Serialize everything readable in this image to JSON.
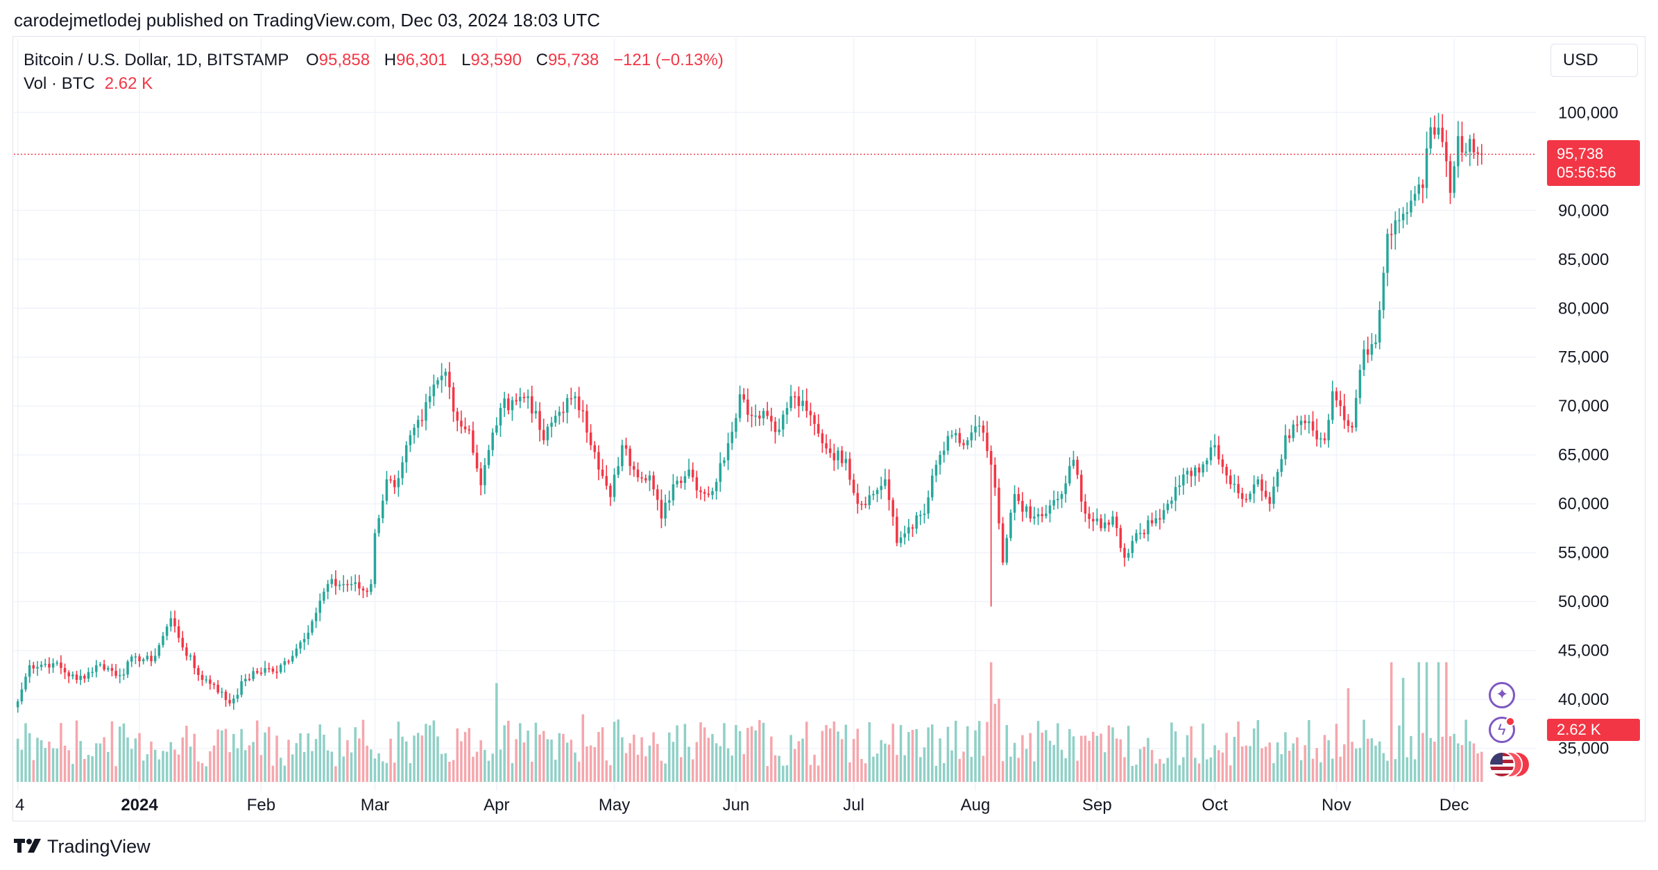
{
  "header": {
    "published_line": "carodejmetlodej published on TradingView.com, Dec 03, 2024 18:03 UTC"
  },
  "legend": {
    "symbol": "Bitcoin / U.S. Dollar, 1D, BITSTAMP",
    "o_label": "O",
    "o_value": "95,858",
    "h_label": "H",
    "h_value": "96,301",
    "l_label": "L",
    "l_value": "93,590",
    "c_label": "C",
    "c_value": "95,738",
    "change": "−121 (−0.13%)",
    "vol_label": "Vol · BTC",
    "vol_value": "2.62 K"
  },
  "toolbar": {
    "currency": "USD"
  },
  "badges": {
    "last_price": "95,738",
    "countdown": "05:56:56",
    "last_volume": "2.62 K"
  },
  "icons": [
    "sparkle-icon",
    "bolt-icon",
    "us-flag-icon"
  ],
  "brand": {
    "name": "TradingView"
  },
  "colors": {
    "up": "#26a69a",
    "down": "#f23645",
    "vol_up": "#8fd0c6",
    "vol_down": "#f5a6ac",
    "grid": "#f0f3fa"
  },
  "chart_data": {
    "type": "candlestick",
    "symbol": "Bitcoin / U.S. Dollar",
    "interval": "1D",
    "exchange": "BITSTAMP",
    "grid": true,
    "y_ticks": [
      "100,000",
      "90,000",
      "85,000",
      "80,000",
      "75,000",
      "70,000",
      "65,000",
      "60,000",
      "55,000",
      "50,000",
      "45,000",
      "40,000",
      "35,000"
    ],
    "y_tick_values": [
      100000,
      90000,
      85000,
      80000,
      75000,
      70000,
      65000,
      60000,
      55000,
      50000,
      45000,
      40000,
      35000
    ],
    "ylim": [
      31500,
      103000
    ],
    "x_ticks": [
      "4",
      "2024",
      "Feb",
      "Mar",
      "Apr",
      "May",
      "Jun",
      "Jul",
      "Aug",
      "Sep",
      "Oct",
      "Nov",
      "Dec"
    ],
    "x_tick_days": [
      -27,
      4,
      35,
      64,
      95,
      125,
      156,
      186,
      217,
      248,
      278,
      309,
      339
    ],
    "xlim": [
      -28,
      360
    ],
    "last_close": 95738,
    "anchors": [
      {
        "day": -27,
        "close": 39800
      },
      {
        "day": -24,
        "close": 43500
      },
      {
        "day": -18,
        "close": 43700
      },
      {
        "day": -12,
        "close": 42000
      },
      {
        "day": -6,
        "close": 43600
      },
      {
        "day": -1,
        "close": 42500
      },
      {
        "day": 3,
        "close": 44400
      },
      {
        "day": 7,
        "close": 43900
      },
      {
        "day": 10,
        "close": 46500
      },
      {
        "day": 12,
        "close": 48300
      },
      {
        "day": 14,
        "close": 46300
      },
      {
        "day": 19,
        "close": 42500
      },
      {
        "day": 23,
        "close": 41500
      },
      {
        "day": 27,
        "close": 39600
      },
      {
        "day": 31,
        "close": 42100
      },
      {
        "day": 36,
        "close": 43200
      },
      {
        "day": 39,
        "close": 42800
      },
      {
        "day": 44,
        "close": 45200
      },
      {
        "day": 48,
        "close": 48000
      },
      {
        "day": 52,
        "close": 51800
      },
      {
        "day": 58,
        "close": 51800
      },
      {
        "day": 62,
        "close": 51000
      },
      {
        "day": 63,
        "close": 51800
      },
      {
        "day": 64,
        "close": 57000
      },
      {
        "day": 67,
        "close": 62500
      },
      {
        "day": 69,
        "close": 61700
      },
      {
        "day": 72,
        "close": 66000
      },
      {
        "day": 76,
        "close": 68500
      },
      {
        "day": 78,
        "close": 71000
      },
      {
        "day": 82,
        "close": 73500
      },
      {
        "day": 85,
        "close": 68500
      },
      {
        "day": 88,
        "close": 67500
      },
      {
        "day": 91,
        "close": 61900
      },
      {
        "day": 93,
        "close": 65500
      },
      {
        "day": 96,
        "close": 69800
      },
      {
        "day": 99,
        "close": 70600
      },
      {
        "day": 103,
        "close": 71000
      },
      {
        "day": 107,
        "close": 66500
      },
      {
        "day": 110,
        "close": 69000
      },
      {
        "day": 114,
        "close": 70800
      },
      {
        "day": 117,
        "close": 69500
      },
      {
        "day": 121,
        "close": 63500
      },
      {
        "day": 124,
        "close": 60700
      },
      {
        "day": 127,
        "close": 66000
      },
      {
        "day": 130,
        "close": 63500
      },
      {
        "day": 134,
        "close": 62900
      },
      {
        "day": 137,
        "close": 58500
      },
      {
        "day": 140,
        "close": 62000
      },
      {
        "day": 144,
        "close": 63500
      },
      {
        "day": 147,
        "close": 61200
      },
      {
        "day": 150,
        "close": 61300
      },
      {
        "day": 154,
        "close": 66200
      },
      {
        "day": 157,
        "close": 71200
      },
      {
        "day": 160,
        "close": 69000
      },
      {
        "day": 163,
        "close": 69500
      },
      {
        "day": 167,
        "close": 67600
      },
      {
        "day": 170,
        "close": 71000
      },
      {
        "day": 174,
        "close": 69500
      },
      {
        "day": 177,
        "close": 67200
      },
      {
        "day": 180,
        "close": 65200
      },
      {
        "day": 184,
        "close": 64600
      },
      {
        "day": 187,
        "close": 60000
      },
      {
        "day": 191,
        "close": 61000
      },
      {
        "day": 194,
        "close": 62500
      },
      {
        "day": 197,
        "close": 56000
      },
      {
        "day": 200,
        "close": 57600
      },
      {
        "day": 204,
        "close": 59000
      },
      {
        "day": 207,
        "close": 64000
      },
      {
        "day": 211,
        "close": 67000
      },
      {
        "day": 214,
        "close": 66000
      },
      {
        "day": 218,
        "close": 68000
      },
      {
        "day": 221,
        "close": 64000
      },
      {
        "day": 223,
        "close": 58000
      },
      {
        "day": 224,
        "close": 54000
      },
      {
        "day": 227,
        "close": 61000
      },
      {
        "day": 231,
        "close": 58500
      },
      {
        "day": 235,
        "close": 59000
      },
      {
        "day": 239,
        "close": 61000
      },
      {
        "day": 242,
        "close": 64500
      },
      {
        "day": 245,
        "close": 59000
      },
      {
        "day": 249,
        "close": 57500
      },
      {
        "day": 252,
        "close": 58700
      },
      {
        "day": 255,
        "close": 54500
      },
      {
        "day": 258,
        "close": 57000
      },
      {
        "day": 262,
        "close": 58000
      },
      {
        "day": 266,
        "close": 60000
      },
      {
        "day": 270,
        "close": 63000
      },
      {
        "day": 274,
        "close": 63200
      },
      {
        "day": 278,
        "close": 66000
      },
      {
        "day": 282,
        "close": 62000
      },
      {
        "day": 285,
        "close": 60500
      },
      {
        "day": 289,
        "close": 62500
      },
      {
        "day": 292,
        "close": 60000
      },
      {
        "day": 296,
        "close": 67000
      },
      {
        "day": 300,
        "close": 68500
      },
      {
        "day": 303,
        "close": 67500
      },
      {
        "day": 306,
        "close": 66500
      },
      {
        "day": 308,
        "close": 71500
      },
      {
        "day": 310,
        "close": 70000
      },
      {
        "day": 313,
        "close": 67800
      },
      {
        "day": 316,
        "close": 75800
      },
      {
        "day": 319,
        "close": 76500
      },
      {
        "day": 322,
        "close": 87600
      },
      {
        "day": 325,
        "close": 89000
      },
      {
        "day": 328,
        "close": 91000
      },
      {
        "day": 331,
        "close": 92300
      },
      {
        "day": 333,
        "close": 98500
      },
      {
        "day": 336,
        "close": 97000
      },
      {
        "day": 338,
        "close": 91800
      },
      {
        "day": 340,
        "close": 97600
      },
      {
        "day": 342,
        "close": 96000
      },
      {
        "day": 343,
        "close": 97300
      },
      {
        "day": 345,
        "close": 95800
      },
      {
        "day": 346,
        "close": 95738
      }
    ],
    "volume_spikes": [
      {
        "day": 95,
        "value": 0.95
      },
      {
        "day": 117,
        "value": 0.65
      },
      {
        "day": 126,
        "value": 0.6
      },
      {
        "day": 221,
        "value": 1.5
      },
      {
        "day": 223,
        "value": 0.8
      },
      {
        "day": 222,
        "value": 0.75
      },
      {
        "day": 312,
        "value": 0.9
      },
      {
        "day": 323,
        "value": 1.3
      },
      {
        "day": 326,
        "value": 1.0
      },
      {
        "day": 330,
        "value": 1.4
      },
      {
        "day": 332,
        "value": 1.3
      },
      {
        "day": 335,
        "value": 1.6
      },
      {
        "day": 337,
        "value": 1.2
      }
    ]
  }
}
